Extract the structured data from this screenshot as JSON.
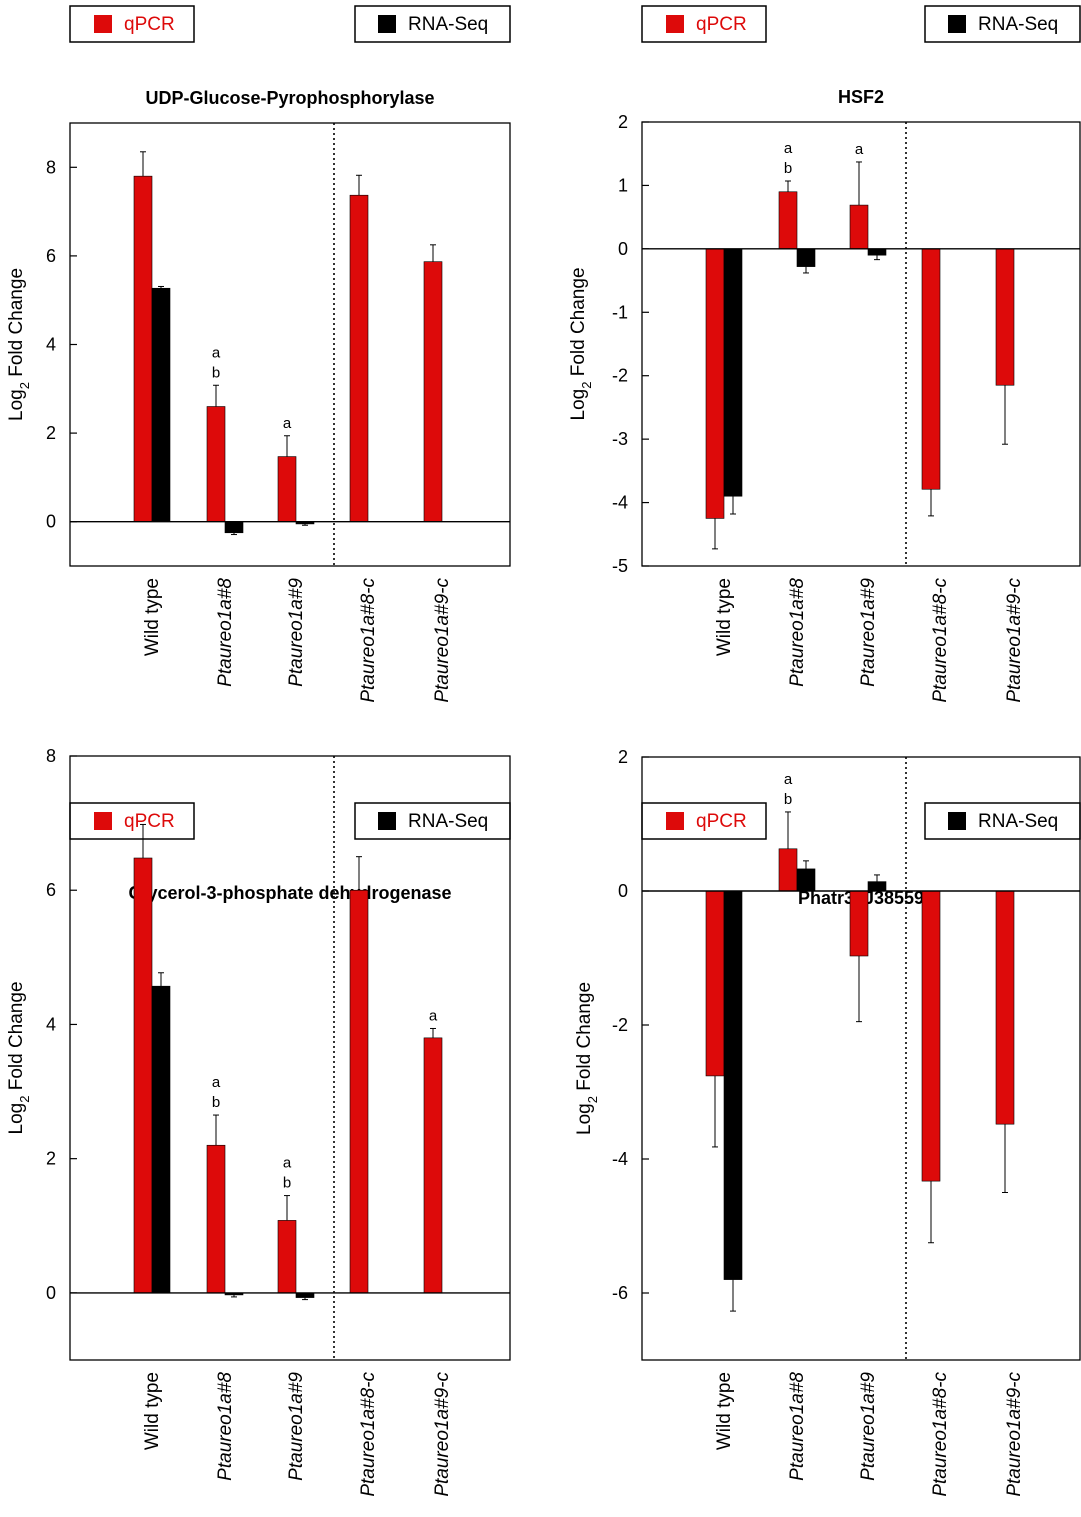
{
  "legend": {
    "qpcr_label": "qPCR",
    "rnaseq_label": "RNA-Seq"
  },
  "colors": {
    "qpcr": "#dd0a0a",
    "rnaseq": "#000000",
    "qpcr_text": "#dd0a0a",
    "axis": "#000000"
  },
  "ylabel": {
    "prefix": "Log",
    "subscript": "2",
    "suffix": " Fold Change"
  },
  "chart_data": [
    {
      "type": "bar",
      "title": "UDP-Glucose-Pyrophosphorylase",
      "categories": [
        "Wild type",
        "Ptaureo1a#8",
        "Ptaureo1a#9",
        "Ptaureo1a#8-c",
        "Ptaureo1a#9-c"
      ],
      "category_italic": [
        false,
        true,
        true,
        true,
        true
      ],
      "series": [
        {
          "name": "qPCR",
          "values": [
            7.8,
            2.6,
            1.47,
            7.37,
            5.87
          ],
          "errors": [
            0.55,
            0.48,
            0.47,
            0.45,
            0.38
          ]
        },
        {
          "name": "RNA-Seq",
          "values": [
            5.27,
            -0.25,
            -0.05,
            null,
            null
          ],
          "errors": [
            0.04,
            0.04,
            0.03,
            null,
            null
          ]
        }
      ],
      "letters": [
        [],
        [
          "a",
          "b"
        ],
        [
          "a"
        ],
        [],
        []
      ],
      "ylim": [
        -1,
        9
      ],
      "yticks": [
        0,
        2,
        4,
        6,
        8
      ],
      "divider_after": 3,
      "grid": false
    },
    {
      "type": "bar",
      "title": "HSF2",
      "categories": [
        "Wild type",
        "Ptaureo1a#8",
        "Ptaureo1a#9",
        "Ptaureo1a#8-c",
        "Ptaureo1a#9-c"
      ],
      "category_italic": [
        false,
        true,
        true,
        true,
        true
      ],
      "series": [
        {
          "name": "qPCR",
          "values": [
            -4.25,
            0.9,
            0.69,
            -3.79,
            -2.15
          ],
          "errors": [
            0.48,
            0.17,
            0.68,
            0.42,
            0.93
          ]
        },
        {
          "name": "RNA-Seq",
          "values": [
            -3.9,
            -0.28,
            -0.1,
            null,
            null
          ],
          "errors": [
            0.28,
            0.1,
            0.07,
            null,
            null
          ]
        }
      ],
      "letters": [
        [],
        [
          "a",
          "b"
        ],
        [
          "a"
        ],
        [],
        []
      ],
      "ylim": [
        -5,
        2
      ],
      "yticks": [
        -5,
        -4,
        -3,
        -2,
        -1,
        0,
        1,
        2
      ],
      "divider_after": 3,
      "grid": false
    },
    {
      "type": "bar",
      "title": "Glycerol-3-phosphate dehydrogenase",
      "categories": [
        "Wild type",
        "Ptaureo1a#8",
        "Ptaureo1a#9",
        "Ptaureo1a#8-c",
        "Ptaureo1a#9-c"
      ],
      "category_italic": [
        false,
        true,
        true,
        true,
        true
      ],
      "series": [
        {
          "name": "qPCR",
          "values": [
            6.48,
            2.2,
            1.08,
            6.0,
            3.8
          ],
          "errors": [
            0.5,
            0.45,
            0.37,
            0.5,
            0.14
          ]
        },
        {
          "name": "RNA-Seq",
          "values": [
            4.57,
            -0.03,
            -0.07,
            null,
            null
          ],
          "errors": [
            0.2,
            0.03,
            0.03,
            null,
            null
          ]
        }
      ],
      "letters": [
        [],
        [
          "a",
          "b"
        ],
        [
          "a",
          "b"
        ],
        [],
        [
          "a"
        ]
      ],
      "ylim": [
        -1,
        8
      ],
      "yticks": [
        0,
        2,
        4,
        6,
        8
      ],
      "divider_after": 3,
      "grid": false
    },
    {
      "type": "bar",
      "title": "Phatr3_J38559",
      "categories": [
        "Wild type",
        "Ptaureo1a#8",
        "Ptaureo1a#9",
        "Ptaureo1a#8-c",
        "Ptaureo1a#9-c"
      ],
      "category_italic": [
        false,
        true,
        true,
        true,
        true
      ],
      "series": [
        {
          "name": "qPCR",
          "values": [
            -2.76,
            0.63,
            -0.97,
            -4.33,
            -3.48
          ],
          "errors": [
            1.06,
            0.55,
            0.98,
            0.92,
            1.02
          ]
        },
        {
          "name": "RNA-Seq",
          "values": [
            -5.8,
            0.33,
            0.14,
            null,
            null
          ],
          "errors": [
            0.47,
            0.12,
            0.1,
            null,
            null
          ]
        }
      ],
      "letters": [
        [],
        [
          "a",
          "b"
        ],
        [],
        [],
        []
      ],
      "ylim": [
        -7,
        2
      ],
      "yticks": [
        -6,
        -4,
        -2,
        0,
        2
      ],
      "divider_after": 3,
      "grid": false
    }
  ]
}
